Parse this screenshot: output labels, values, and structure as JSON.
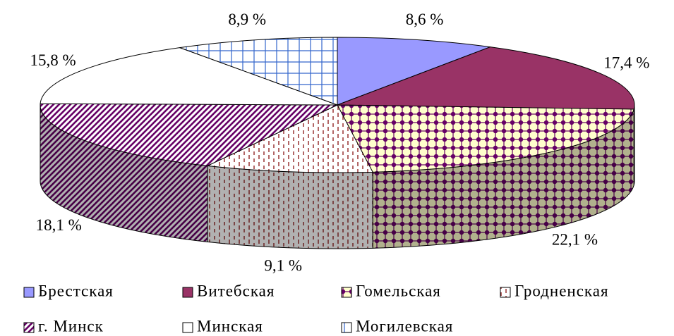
{
  "chart_data": {
    "type": "pie3d",
    "categories": [
      "Брестская",
      "Витебская",
      "Гомельская",
      "Гродненская",
      "г. Минск",
      "Минская",
      "Могилевская"
    ],
    "values": [
      8.6,
      17.4,
      22.1,
      9.1,
      18.1,
      15.8,
      8.9
    ],
    "value_labels": [
      "8,6 %",
      "17,4 %",
      "22,1 %",
      "9,1 %",
      "18,1 %",
      "15,8 %",
      "8,9 %"
    ],
    "colors": [
      "#9999ff",
      "#993366",
      "#660066",
      "#993333",
      "#660066",
      "#ffffff",
      "#3366cc"
    ]
  }
}
